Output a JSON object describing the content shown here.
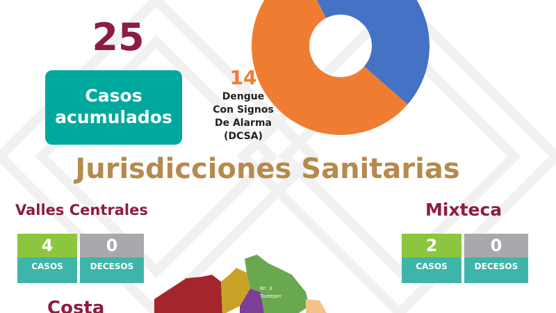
{
  "total": {
    "value": 25,
    "label": [
      "Casos",
      "acumulados"
    ]
  },
  "donut": {
    "type": "pie",
    "values": [
      14,
      11
    ],
    "colors": [
      "#ef7d31",
      "#4472c4"
    ],
    "label_lines": [
      "Dengue",
      "Con Signos",
      "De Alarma",
      "(DCSA)"
    ]
  },
  "section_title": "Jurisdicciones Sanitarias",
  "regions": [
    {
      "name": "Valles Centrales",
      "casos": 4,
      "decesos": 0,
      "casos_label": "CASOS",
      "decesos_label": "DECESOS"
    },
    {
      "name": "Mixteca",
      "casos": 2,
      "decesos": 0,
      "casos_label": "CASOS",
      "decesos_label": "DECESOS"
    },
    {
      "name": "Costa"
    }
  ],
  "map_labels": [
    "Nº. 3",
    "Tuxtepec"
  ]
}
